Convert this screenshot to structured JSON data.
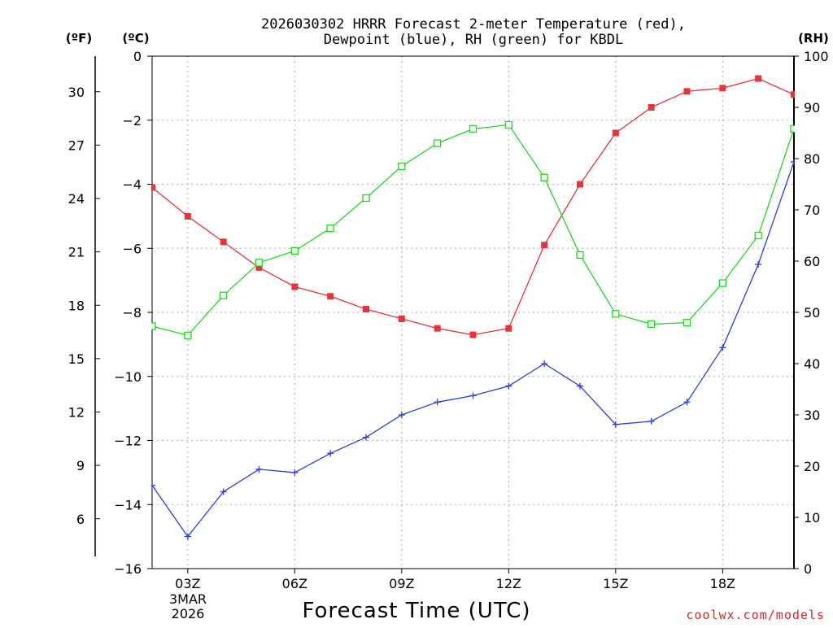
{
  "chart_data": {
    "type": "line",
    "title_line1": "2026030302 HRRR Forecast 2-meter Temperature (red),",
    "title_line2": "Dewpoint (blue), RH (green) for KBDL",
    "xlabel": "Forecast Time (UTC)",
    "credit": "coolwx.com/models",
    "units": {
      "fahrenheit": "(ºF)",
      "celsius": "(ºC)",
      "rh": "(RH)"
    },
    "x_hours": [
      2,
      3,
      4,
      5,
      6,
      7,
      8,
      9,
      10,
      11,
      12,
      13,
      14,
      15,
      16,
      17,
      18,
      19,
      20
    ],
    "xlim": [
      2,
      20
    ],
    "x_ticks": [
      {
        "hour": 3,
        "label": "03Z"
      },
      {
        "hour": 6,
        "label": "06Z"
      },
      {
        "hour": 9,
        "label": "09Z"
      },
      {
        "hour": 12,
        "label": "12Z"
      },
      {
        "hour": 15,
        "label": "15Z"
      },
      {
        "hour": 18,
        "label": "18Z"
      }
    ],
    "date_label_line1": "3MAR",
    "date_label_line2": "2026",
    "celsius_axis": {
      "ylim": [
        -16,
        0
      ],
      "ticks": [
        0,
        -2,
        -4,
        -6,
        -8,
        -10,
        -12,
        -14,
        -16
      ],
      "tick_labels": [
        "0",
        "−2",
        "−4",
        "−6",
        "−8",
        "−10",
        "−12",
        "−14",
        "−16"
      ]
    },
    "fahrenheit_axis": {
      "ticks": [
        30,
        27,
        24,
        21,
        18,
        15,
        12,
        9,
        6
      ],
      "tick_labels": [
        "30",
        "27",
        "24",
        "21",
        "18",
        "15",
        "12",
        "9",
        "6"
      ]
    },
    "rh_axis": {
      "ylim": [
        0,
        100
      ],
      "ticks": [
        0,
        10,
        20,
        30,
        40,
        50,
        60,
        70,
        80,
        90,
        100
      ],
      "tick_labels": [
        "0",
        "10",
        "20",
        "30",
        "40",
        "50",
        "60",
        "70",
        "80",
        "90",
        "100"
      ]
    },
    "series": [
      {
        "name": "Temperature",
        "axis": "celsius",
        "color": "#e8323c",
        "marker": "filled-square",
        "values": [
          -4.1,
          -5.0,
          -5.8,
          -6.6,
          -7.2,
          -7.5,
          -7.9,
          -8.2,
          -8.5,
          -8.7,
          -8.5,
          -5.9,
          -4.0,
          -2.4,
          -1.6,
          -1.1,
          -1.0,
          -0.7,
          -1.2
        ]
      },
      {
        "name": "Dewpoint",
        "axis": "celsius",
        "color": "#2b3de0",
        "marker": "plus",
        "values": [
          -13.4,
          -15.0,
          -13.6,
          -12.9,
          -13.0,
          -12.4,
          -11.9,
          -11.2,
          -10.8,
          -10.6,
          -10.3,
          -9.6,
          -10.3,
          -11.5,
          -11.4,
          -10.8,
          -9.1,
          -6.5,
          -3.3
        ]
      },
      {
        "name": "Relative Humidity",
        "axis": "rh",
        "color": "#1fd81f",
        "marker": "open-square",
        "values": [
          47.3,
          45.5,
          53.3,
          59.7,
          62.0,
          66.4,
          72.3,
          78.5,
          83.0,
          85.8,
          86.6,
          76.3,
          61.2,
          49.7,
          47.7,
          48.0,
          55.7,
          65.0,
          85.8
        ]
      }
    ]
  }
}
